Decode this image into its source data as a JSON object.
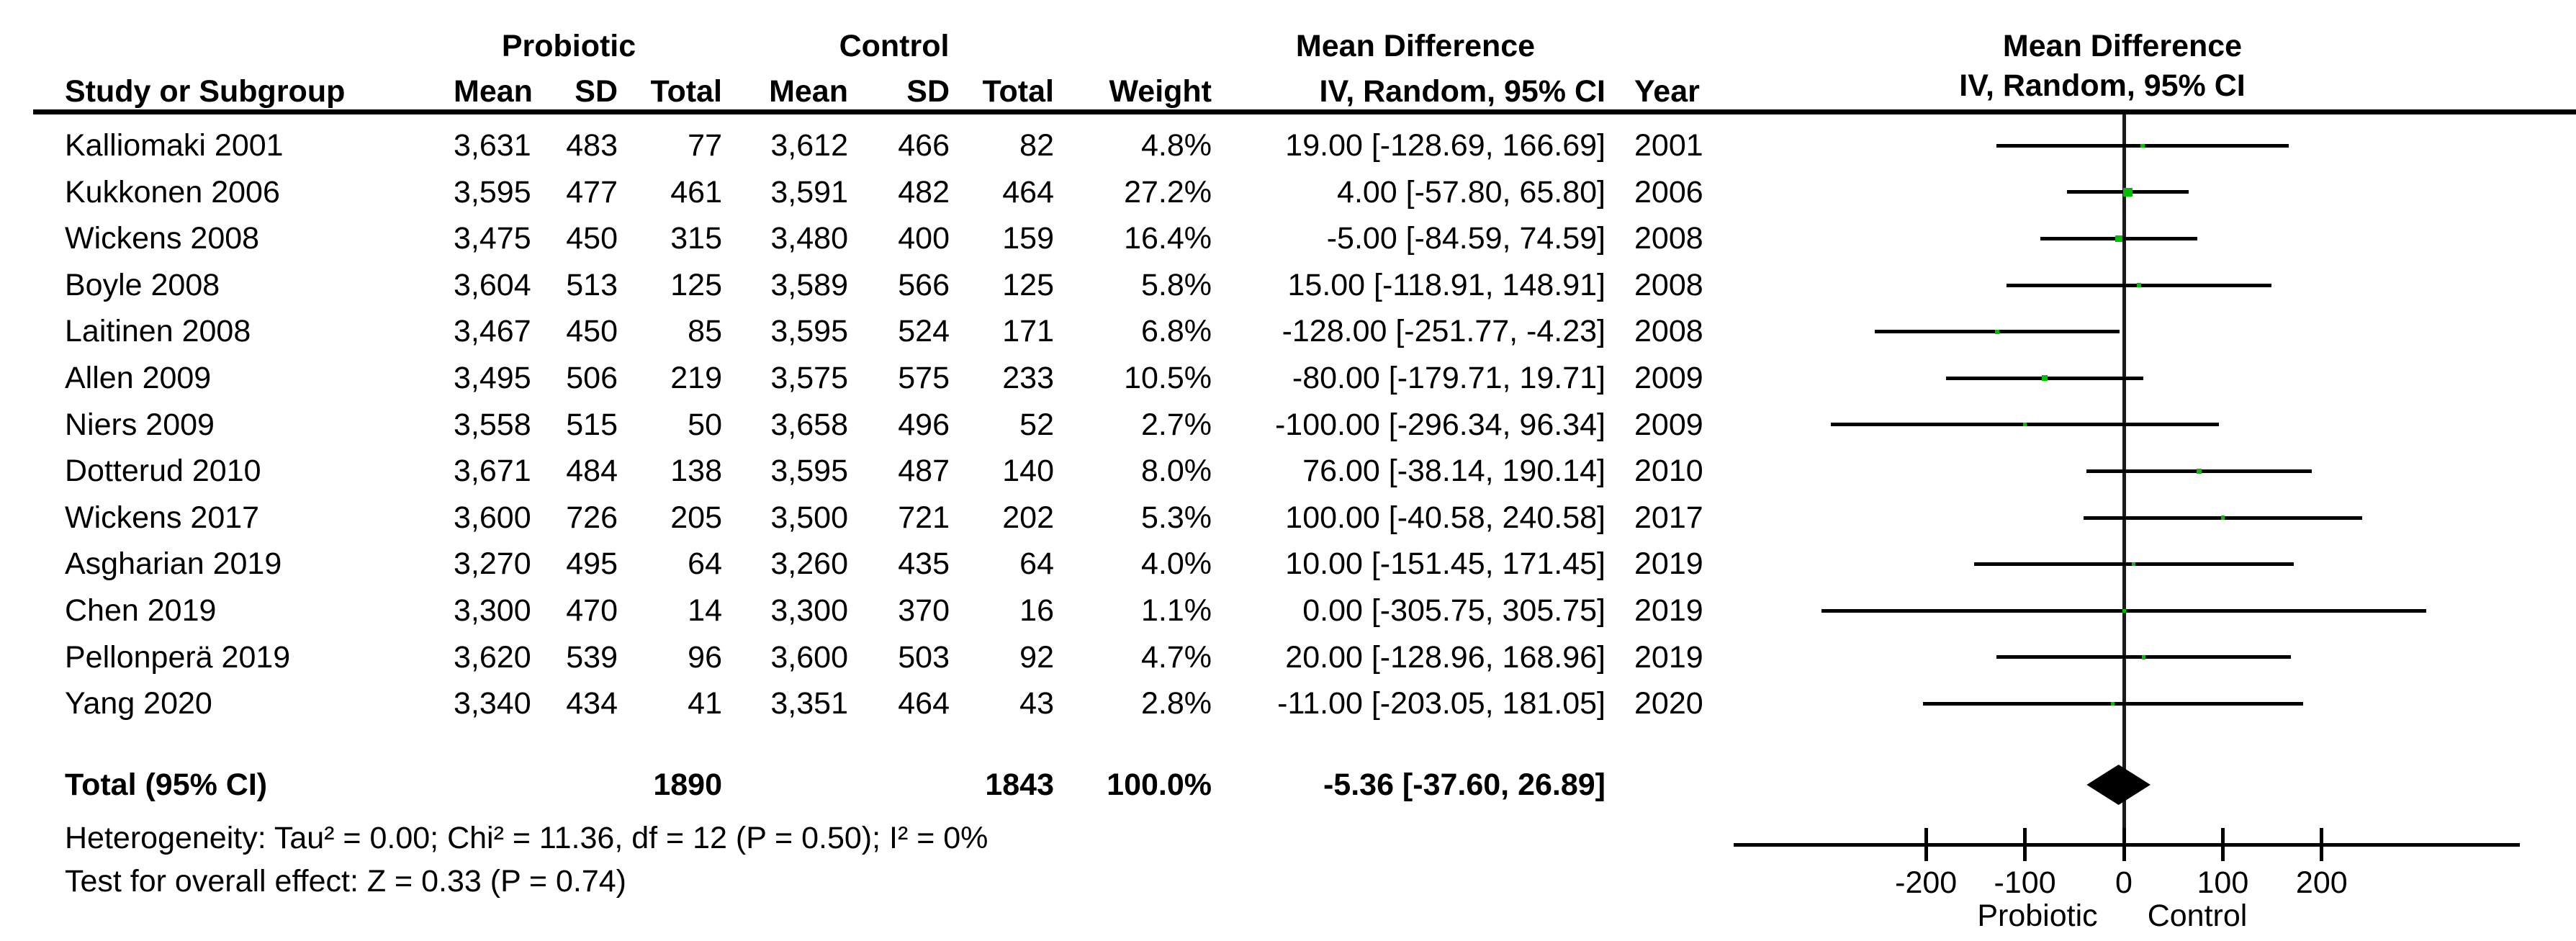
{
  "chart_data": {
    "type": "scatter",
    "subtype": "forest-plot-mean-difference",
    "model": "IV, Random, 95% CI",
    "header": {
      "probiotic": "Probiotic",
      "control": "Control",
      "md": "Mean Difference",
      "md2": "Mean Difference",
      "cols": {
        "study": "Study or Subgroup",
        "mean1": "Mean",
        "sd1": "SD",
        "total1": "Total",
        "mean2": "Mean",
        "sd2": "SD",
        "total2": "Total",
        "weight": "Weight",
        "ci": "IV, Random, 95% CI",
        "year": "Year",
        "ci2": "IV, Random, 95% CI"
      }
    },
    "studies": [
      {
        "study": "Kalliomaki 2001",
        "mean1": "3,631",
        "sd1": "483",
        "total1": "77",
        "mean2": "3,612",
        "sd2": "466",
        "total2": "82",
        "weight": "4.8%",
        "weight_value": 4.8,
        "ci_label": "19.00 [-128.69, 166.69]",
        "year": "2001",
        "md": 19.0,
        "lo": -128.69,
        "hi": 166.69
      },
      {
        "study": "Kukkonen 2006",
        "mean1": "3,595",
        "sd1": "477",
        "total1": "461",
        "mean2": "3,591",
        "sd2": "482",
        "total2": "464",
        "weight": "27.2%",
        "weight_value": 27.2,
        "ci_label": "4.00 [-57.80, 65.80]",
        "year": "2006",
        "md": 4.0,
        "lo": -57.8,
        "hi": 65.8
      },
      {
        "study": "Wickens 2008",
        "mean1": "3,475",
        "sd1": "450",
        "total1": "315",
        "mean2": "3,480",
        "sd2": "400",
        "total2": "159",
        "weight": "16.4%",
        "weight_value": 16.4,
        "ci_label": "-5.00 [-84.59, 74.59]",
        "year": "2008",
        "md": -5.0,
        "lo": -84.59,
        "hi": 74.59
      },
      {
        "study": "Boyle 2008",
        "mean1": "3,604",
        "sd1": "513",
        "total1": "125",
        "mean2": "3,589",
        "sd2": "566",
        "total2": "125",
        "weight": "5.8%",
        "weight_value": 5.8,
        "ci_label": "15.00 [-118.91, 148.91]",
        "year": "2008",
        "md": 15.0,
        "lo": -118.91,
        "hi": 148.91
      },
      {
        "study": "Laitinen 2008",
        "mean1": "3,467",
        "sd1": "450",
        "total1": "85",
        "mean2": "3,595",
        "sd2": "524",
        "total2": "171",
        "weight": "6.8%",
        "weight_value": 6.8,
        "ci_label": "-128.00 [-251.77, -4.23]",
        "year": "2008",
        "md": -128.0,
        "lo": -251.77,
        "hi": -4.23
      },
      {
        "study": "Allen 2009",
        "mean1": "3,495",
        "sd1": "506",
        "total1": "219",
        "mean2": "3,575",
        "sd2": "575",
        "total2": "233",
        "weight": "10.5%",
        "weight_value": 10.5,
        "ci_label": "-80.00 [-179.71, 19.71]",
        "year": "2009",
        "md": -80.0,
        "lo": -179.71,
        "hi": 19.71
      },
      {
        "study": "Niers 2009",
        "mean1": "3,558",
        "sd1": "515",
        "total1": "50",
        "mean2": "3,658",
        "sd2": "496",
        "total2": "52",
        "weight": "2.7%",
        "weight_value": 2.7,
        "ci_label": "-100.00 [-296.34, 96.34]",
        "year": "2009",
        "md": -100.0,
        "lo": -296.34,
        "hi": 96.34
      },
      {
        "study": "Dotterud 2010",
        "mean1": "3,671",
        "sd1": "484",
        "total1": "138",
        "mean2": "3,595",
        "sd2": "487",
        "total2": "140",
        "weight": "8.0%",
        "weight_value": 8.0,
        "ci_label": "76.00 [-38.14, 190.14]",
        "year": "2010",
        "md": 76.0,
        "lo": -38.14,
        "hi": 190.14
      },
      {
        "study": "Wickens 2017",
        "mean1": "3,600",
        "sd1": "726",
        "total1": "205",
        "mean2": "3,500",
        "sd2": "721",
        "total2": "202",
        "weight": "5.3%",
        "weight_value": 5.3,
        "ci_label": "100.00 [-40.58, 240.58]",
        "year": "2017",
        "md": 100.0,
        "lo": -40.58,
        "hi": 240.58
      },
      {
        "study": "Asgharian 2019",
        "mean1": "3,270",
        "sd1": "495",
        "total1": "64",
        "mean2": "3,260",
        "sd2": "435",
        "total2": "64",
        "weight": "4.0%",
        "weight_value": 4.0,
        "ci_label": "10.00 [-151.45, 171.45]",
        "year": "2019",
        "md": 10.0,
        "lo": -151.45,
        "hi": 171.45
      },
      {
        "study": "Chen 2019",
        "mean1": "3,300",
        "sd1": "470",
        "total1": "14",
        "mean2": "3,300",
        "sd2": "370",
        "total2": "16",
        "weight": "1.1%",
        "weight_value": 1.1,
        "ci_label": "0.00 [-305.75, 305.75]",
        "year": "2019",
        "md": 0.0,
        "lo": -305.75,
        "hi": 305.75
      },
      {
        "study": "Pellonperä 2019",
        "mean1": "3,620",
        "sd1": "539",
        "total1": "96",
        "mean2": "3,600",
        "sd2": "503",
        "total2": "92",
        "weight": "4.7%",
        "weight_value": 4.7,
        "ci_label": "20.00 [-128.96, 168.96]",
        "year": "2019",
        "md": 20.0,
        "lo": -128.96,
        "hi": 168.96
      },
      {
        "study": "Yang 2020",
        "mean1": "3,340",
        "sd1": "434",
        "total1": "41",
        "mean2": "3,351",
        "sd2": "464",
        "total2": "43",
        "weight": "2.8%",
        "weight_value": 2.8,
        "ci_label": "-11.00 [-203.05, 181.05]",
        "year": "2020",
        "md": -11.0,
        "lo": -203.05,
        "hi": 181.05
      }
    ],
    "total": {
      "label": "Total (95% CI)",
      "total1": "1890",
      "total2": "1843",
      "weight": "100.0%",
      "ci_label": "-5.36 [-37.60, 26.89]",
      "md": -5.36,
      "lo": -37.6,
      "hi": 26.89
    },
    "footnotes": {
      "heterogeneity": "Heterogeneity: Tau² = 0.00; Chi² = 11.36, df = 12 (P = 0.50); I² = 0%",
      "overall_effect": "Test for overall effect: Z = 0.33 (P = 0.74)"
    },
    "axis": {
      "ticks": [
        -200,
        -100,
        0,
        100,
        200
      ],
      "range": [
        -395,
        400
      ],
      "left_label": "Probiotic",
      "right_label": "Control",
      "grid": false
    },
    "colors": {
      "marker": "#00BE00",
      "diamond": "#000000",
      "line": "#000000",
      "text": "#000000"
    }
  }
}
